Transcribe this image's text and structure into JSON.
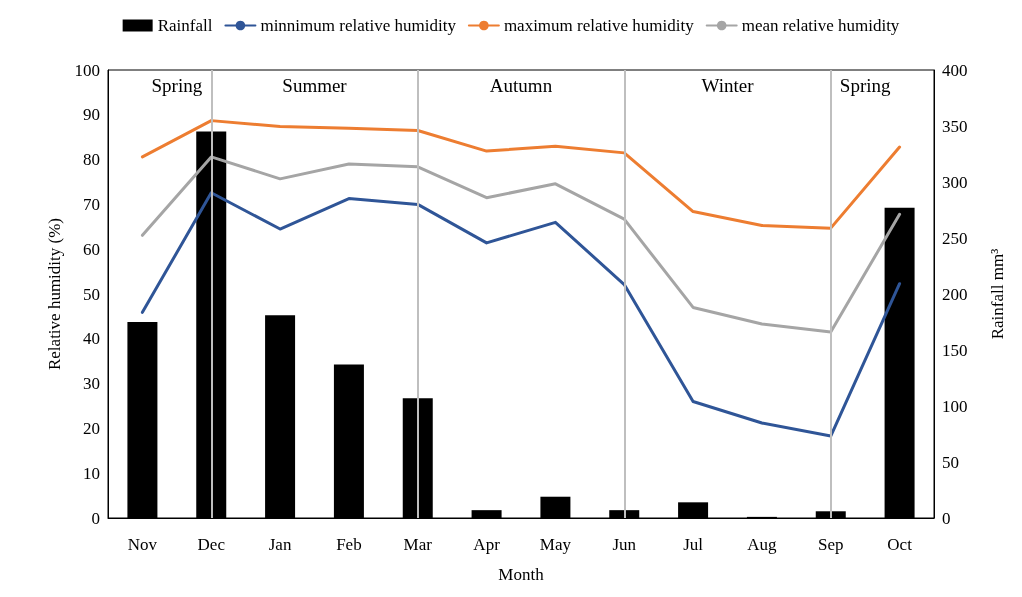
{
  "chart_data": {
    "type": "bar",
    "xlabel": "Month",
    "ylabel": "Relative humidity (%)",
    "y2label": "Rainfall mm³",
    "categories": [
      "Nov",
      "Dec",
      "Jan",
      "Feb",
      "Mar",
      "Apr",
      "May",
      "Jun",
      "Jul",
      "Aug",
      "Sep",
      "Oct"
    ],
    "series": [
      {
        "name": "Rainfall",
        "axis": "y2",
        "color": "#000000",
        "values": [
          175,
          345,
          181,
          137,
          107,
          7,
          19,
          7,
          14,
          1,
          6,
          277
        ]
      },
      {
        "name": "minnimum relative humidity",
        "type": "line",
        "color": "#2f5597",
        "values": [
          45.9,
          72.6,
          64.5,
          71.3,
          70,
          61.4,
          66,
          52.1,
          26,
          21.2,
          18.3,
          52.3
        ]
      },
      {
        "name": "maximum relative humidity",
        "type": "line",
        "color": "#ed7d31",
        "values": [
          80.6,
          88.7,
          87.4,
          87,
          86.5,
          81.9,
          83,
          81.5,
          68.4,
          65.3,
          64.7,
          82.8
        ]
      },
      {
        "name": "mean relative humidity",
        "type": "line",
        "color": "#a5a5a5",
        "values": [
          63.1,
          80.6,
          75.7,
          79,
          78.4,
          71.5,
          74.6,
          66.7,
          47,
          43.3,
          41.5,
          67.8
        ]
      }
    ],
    "ylim": [
      0,
      100
    ],
    "yticks": [
      0,
      10,
      20,
      30,
      40,
      50,
      60,
      70,
      80,
      90,
      100
    ],
    "y2lim": [
      0,
      400
    ],
    "y2ticks": [
      0,
      50,
      100,
      150,
      200,
      250,
      300,
      350,
      400
    ],
    "ref_lines": [
      {
        "axis": "x",
        "value": "Dec",
        "color": "#bfbfbf"
      },
      {
        "axis": "x",
        "value": "Mar",
        "color": "#bfbfbf"
      },
      {
        "axis": "x",
        "value": "Jun",
        "color": "#bfbfbf"
      },
      {
        "axis": "x",
        "value": "Sep",
        "color": "#bfbfbf"
      }
    ],
    "annotations": [
      "Spring",
      "Summer",
      "Autumn",
      "Winter",
      "Spring"
    ],
    "grid": false,
    "legend": "top",
    "marker": "none",
    "line_style": "solid"
  }
}
